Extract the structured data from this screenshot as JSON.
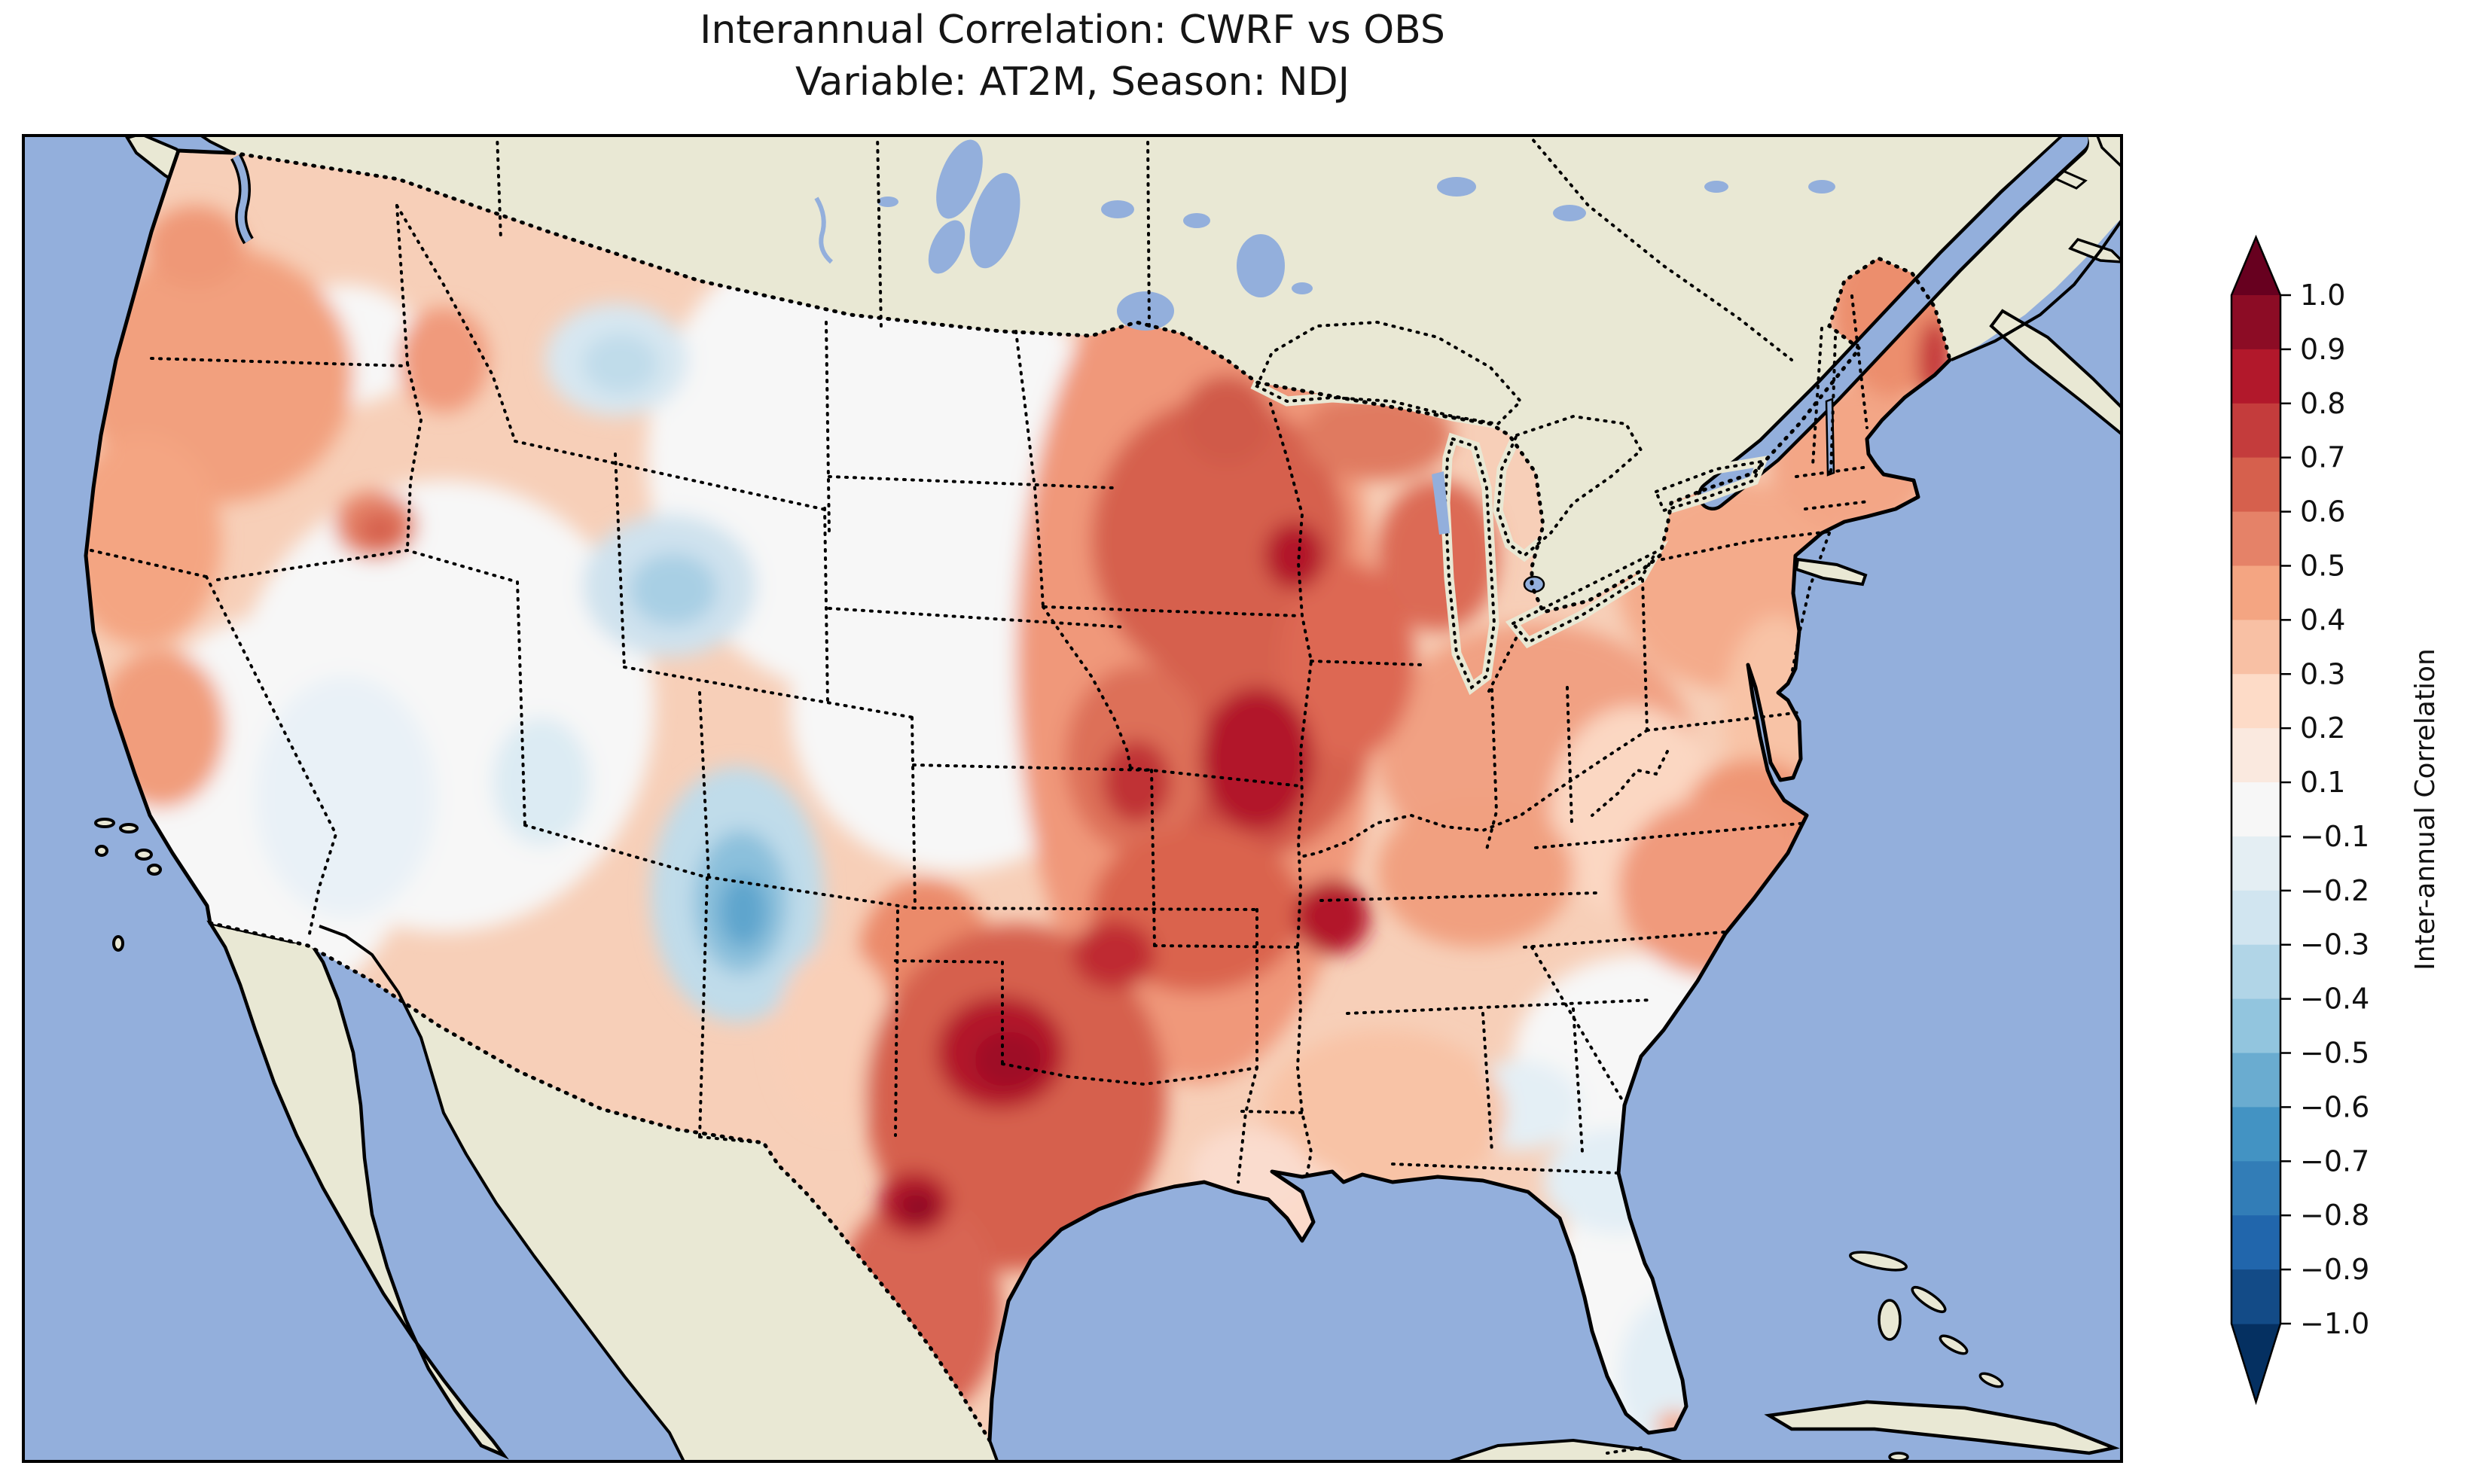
{
  "title": {
    "line1": "Interannual Correlation: CWRF vs OBS",
    "line2": "Variable: AT2M, Season: NDJ"
  },
  "colorbar": {
    "label": "Inter-annual Correlation",
    "ticks": [
      "1.0",
      "0.9",
      "0.8",
      "0.7",
      "0.6",
      "0.5",
      "0.4",
      "0.3",
      "0.2",
      "0.1",
      "−0.1",
      "−0.2",
      "−0.3",
      "−0.4",
      "−0.5",
      "−0.6",
      "−0.7",
      "−0.8",
      "−0.9",
      "−1.0"
    ],
    "bands_top_to_bottom": [
      "#8c0c25",
      "#b2182b",
      "#c43c3c",
      "#d6604d",
      "#e58268",
      "#f4a582",
      "#f8c0a4",
      "#fddbc7",
      "#fae9df",
      "#f7f7f7",
      "#e4eef3",
      "#d1e5f0",
      "#b1d5e7",
      "#92c5de",
      "#6aacd0",
      "#4393c3",
      "#327db7",
      "#2166ac",
      "#134b87"
    ],
    "extend_max_color": "#67001f",
    "extend_min_color": "#053061",
    "orientation": "vertical",
    "position": "right"
  },
  "map": {
    "ocean_color": "#93afdc",
    "lake_color": "#93afdc",
    "nodata_land_color": "#e9e8d4",
    "coastline_color": "#000000",
    "political_border_style": "dotted black",
    "field_base_color": "#f7cfb8"
  },
  "chart_data": {
    "type": "heatmap",
    "title": "Interannual Correlation: CWRF vs OBS",
    "subtitle": "Variable: AT2M, Season: NDJ",
    "colormap": "RdBu_r (discrete, 19 bands + extend triangles)",
    "colorbar_label": "Inter-annual Correlation",
    "levels": [
      -1.0,
      -0.9,
      -0.8,
      -0.7,
      -0.6,
      -0.5,
      -0.4,
      -0.3,
      -0.2,
      -0.1,
      0.1,
      0.2,
      0.3,
      0.4,
      0.5,
      0.6,
      0.7,
      0.8,
      0.9,
      1.0
    ],
    "value_range": [
      -1.0,
      1.0
    ],
    "legend_position": "right",
    "domain": "Continental United States (no-data land shown beige over Canada, Mexico, Caribbean)",
    "regions": [
      {
        "name": "Pacific Northwest (WA/OR)",
        "approx_correlation": 0.4
      },
      {
        "name": "Eastern Washington",
        "approx_correlation": 0.05
      },
      {
        "name": "Eastern Oregon local max",
        "approx_correlation": 0.6
      },
      {
        "name": "California coast",
        "approx_correlation": 0.3
      },
      {
        "name": "California interior / Great Basin",
        "approx_correlation": 0.0
      },
      {
        "name": "Western Montana",
        "approx_correlation": -0.2
      },
      {
        "name": "Wyoming",
        "approx_correlation": -0.3
      },
      {
        "name": "Colorado / northern New Mexico Rockies",
        "approx_correlation": -0.4
      },
      {
        "name": "Northern Plains (Dakotas, western NE/KS)",
        "approx_correlation": 0.1
      },
      {
        "name": "Minnesota / Wisconsin",
        "approx_correlation": 0.6
      },
      {
        "name": "Iowa / Missouri / Illinois corridor",
        "approx_correlation": 0.75
      },
      {
        "name": "Eastern Nebraska / Kansas",
        "approx_correlation": 0.6
      },
      {
        "name": "Oklahoma / north Texas",
        "approx_correlation": 0.75
      },
      {
        "name": "Central Texas core",
        "approx_correlation": 0.85
      },
      {
        "name": "Gulf Coast (LA/MS)",
        "approx_correlation": 0.3
      },
      {
        "name": "Ohio Valley / Kentucky-Tennessee",
        "approx_correlation": 0.5
      },
      {
        "name": "Mid-Atlantic / New York / Pennsylvania",
        "approx_correlation": 0.45
      },
      {
        "name": "Southeast (GA/SC)",
        "approx_correlation": 0.1
      },
      {
        "name": "Florida peninsula",
        "approx_correlation": -0.1
      },
      {
        "name": "New England",
        "approx_correlation": 0.45
      },
      {
        "name": "Maine",
        "approx_correlation": 0.55
      }
    ]
  }
}
